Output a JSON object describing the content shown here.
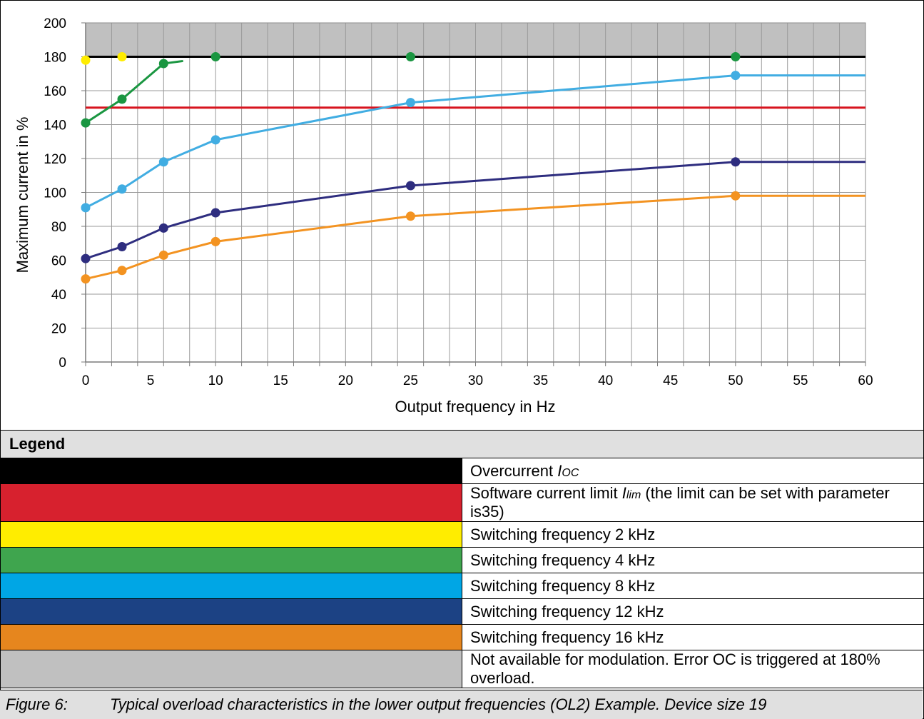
{
  "chart_data": {
    "type": "line",
    "xlabel": "Output frequency in Hz",
    "ylabel": "Maximum current in %",
    "xlim": [
      0,
      60
    ],
    "ylim": [
      0,
      200
    ],
    "x_ticks": [
      0,
      5,
      10,
      15,
      20,
      25,
      30,
      35,
      40,
      45,
      50,
      55,
      60
    ],
    "y_ticks": [
      0,
      20,
      40,
      60,
      80,
      100,
      120,
      140,
      160,
      180,
      200
    ],
    "x_minor_step": 2,
    "y_grid_step": 20,
    "grid": true,
    "shaded_region": {
      "ymin": 180,
      "ymax": 200,
      "color": "#c0c0c0"
    },
    "reference_lines": [
      {
        "y": 180,
        "color": "#000000"
      },
      {
        "y": 150,
        "color": "#d7141e"
      }
    ],
    "series": [
      {
        "color": "#ffed00",
        "points": [
          [
            0,
            178
          ],
          [
            2.8,
            180
          ]
        ],
        "extend_to": null
      },
      {
        "color": "#1a9641",
        "points": [
          [
            0,
            141
          ],
          [
            2.8,
            155
          ],
          [
            6,
            176
          ],
          [
            10,
            180
          ],
          [
            25,
            180
          ],
          [
            50,
            180
          ]
        ],
        "connect_until": 7.5
      },
      {
        "color": "#41ade2",
        "points": [
          [
            0,
            91
          ],
          [
            2.8,
            102
          ],
          [
            6,
            118
          ],
          [
            10,
            131
          ],
          [
            25,
            153
          ],
          [
            50,
            169
          ]
        ],
        "extend_to": 60
      },
      {
        "color": "#2e2d7f",
        "points": [
          [
            0,
            61
          ],
          [
            2.8,
            68
          ],
          [
            6,
            79
          ],
          [
            10,
            88
          ],
          [
            25,
            104
          ],
          [
            50,
            118
          ]
        ],
        "extend_to": 60
      },
      {
        "color": "#f39321",
        "points": [
          [
            0,
            49
          ],
          [
            2.8,
            54
          ],
          [
            6,
            63
          ],
          [
            10,
            71
          ],
          [
            25,
            86
          ],
          [
            50,
            98
          ]
        ],
        "extend_to": 60
      }
    ]
  },
  "legend": {
    "heading": "Legend",
    "items": [
      {
        "color": "#000000",
        "text": "Overcurrent ",
        "sym": "I",
        "sub": "OC",
        "after": ""
      },
      {
        "color": "#d7212e",
        "text": "Software current limit ",
        "sym": "I",
        "sub": "lim",
        "after": " (the limit can be set with parameter is35)"
      },
      {
        "color": "#ffed00",
        "text": "Switching frequency 2 kHz",
        "sym": "",
        "sub": "",
        "after": ""
      },
      {
        "color": "#3fa54e",
        "text": "Switching frequency 4 kHz",
        "sym": "",
        "sub": "",
        "after": ""
      },
      {
        "color": "#00a6e5",
        "text": "Switching frequency 8 kHz",
        "sym": "",
        "sub": "",
        "after": ""
      },
      {
        "color": "#1c4284",
        "text": "Switching frequency 12 kHz",
        "sym": "",
        "sub": "",
        "after": ""
      },
      {
        "color": "#e6861e",
        "text": "Switching frequency 16 kHz",
        "sym": "",
        "sub": "",
        "after": ""
      },
      {
        "color": "#c0c0c0",
        "text": "Not available for modulation. Error OC is triggered at 180% overload.",
        "sym": "",
        "sub": "",
        "after": ""
      }
    ]
  },
  "caption": {
    "number": "Figure 6:",
    "text": "Typical overload characteristics in the lower output frequencies (OL2) Example. Device size 19"
  }
}
